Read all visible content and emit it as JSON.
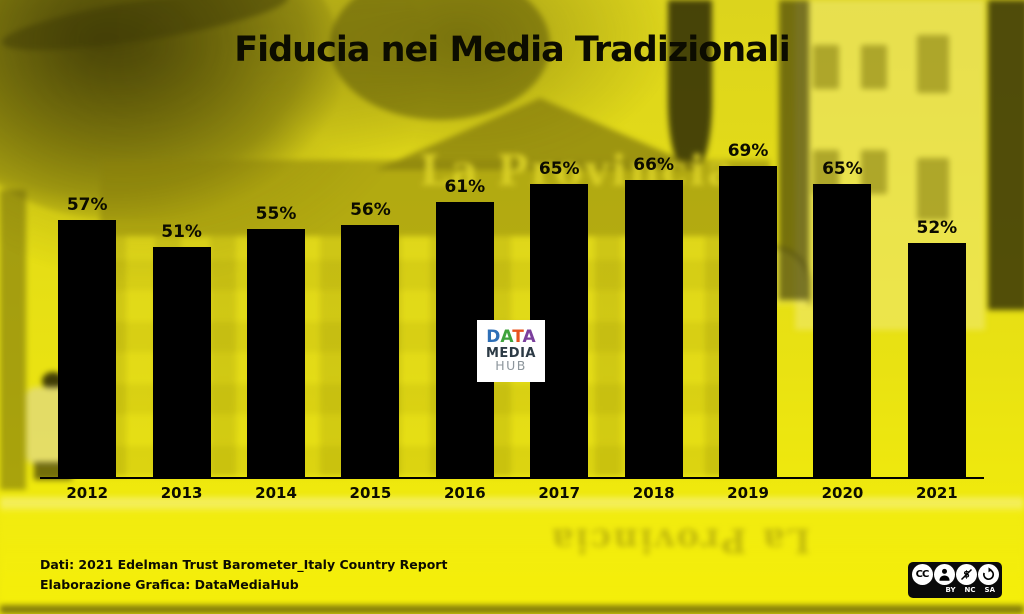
{
  "title": "Fiducia nei Media Tradizionali",
  "chart_data": {
    "type": "bar",
    "title": "Fiducia nei Media Tradizionali",
    "categories": [
      "2012",
      "2013",
      "2014",
      "2015",
      "2016",
      "2017",
      "2018",
      "2019",
      "2020",
      "2021"
    ],
    "values": [
      57,
      51,
      55,
      56,
      61,
      65,
      66,
      69,
      65,
      52
    ],
    "data_labels": [
      "57%",
      "51%",
      "55%",
      "56%",
      "61%",
      "65%",
      "66%",
      "69%",
      "65%",
      "52%"
    ],
    "unit": "%",
    "xlabel": "",
    "ylabel": "",
    "ylim": [
      0,
      100
    ],
    "grid": false,
    "legend": false,
    "bar_color": "#000000",
    "label_color": "#0c0c00",
    "background_color": "#e8e112"
  },
  "watermark_logo": {
    "letters": [
      {
        "ch": "D",
        "color": "#2e6fb7"
      },
      {
        "ch": "A",
        "color": "#3fa33c"
      },
      {
        "ch": "T",
        "color": "#e8531f"
      },
      {
        "ch": "A",
        "color": "#7b3f9d"
      }
    ],
    "line2": "MEDIA",
    "line3": "HUB"
  },
  "background_photo": {
    "kiosk_sign_text": "La Provincia"
  },
  "footer": {
    "source_line": "Dati: 2021 Edelman Trust Barometer_Italy Country Report",
    "credit_line": "Elaborazione Grafica: DataMediaHub"
  },
  "license_badge": {
    "labels": [
      "BY",
      "NC",
      "SA"
    ]
  }
}
